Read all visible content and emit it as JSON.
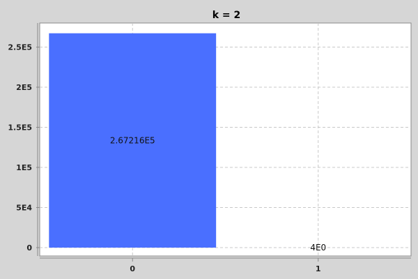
{
  "chart_data": {
    "type": "bar",
    "title": "k = 2",
    "categories": [
      "0",
      "1"
    ],
    "values": [
      267216,
      4
    ],
    "value_labels": [
      "2.67216E5",
      "4E0"
    ],
    "ylim": [
      0,
      280000
    ],
    "yticks": [
      {
        "value": 0,
        "label": "0"
      },
      {
        "value": 50000,
        "label": "5E4"
      },
      {
        "value": 100000,
        "label": "1E5"
      },
      {
        "value": 150000,
        "label": "1.5E5"
      },
      {
        "value": 200000,
        "label": "2E5"
      },
      {
        "value": 250000,
        "label": "2.5E5"
      }
    ],
    "grid": true,
    "colors": {
      "bar": "#4a6fff",
      "background": "#d6d6d6",
      "plot_area": "#ffffff",
      "grid": "#c8c8c8",
      "axis": "#888888"
    }
  }
}
